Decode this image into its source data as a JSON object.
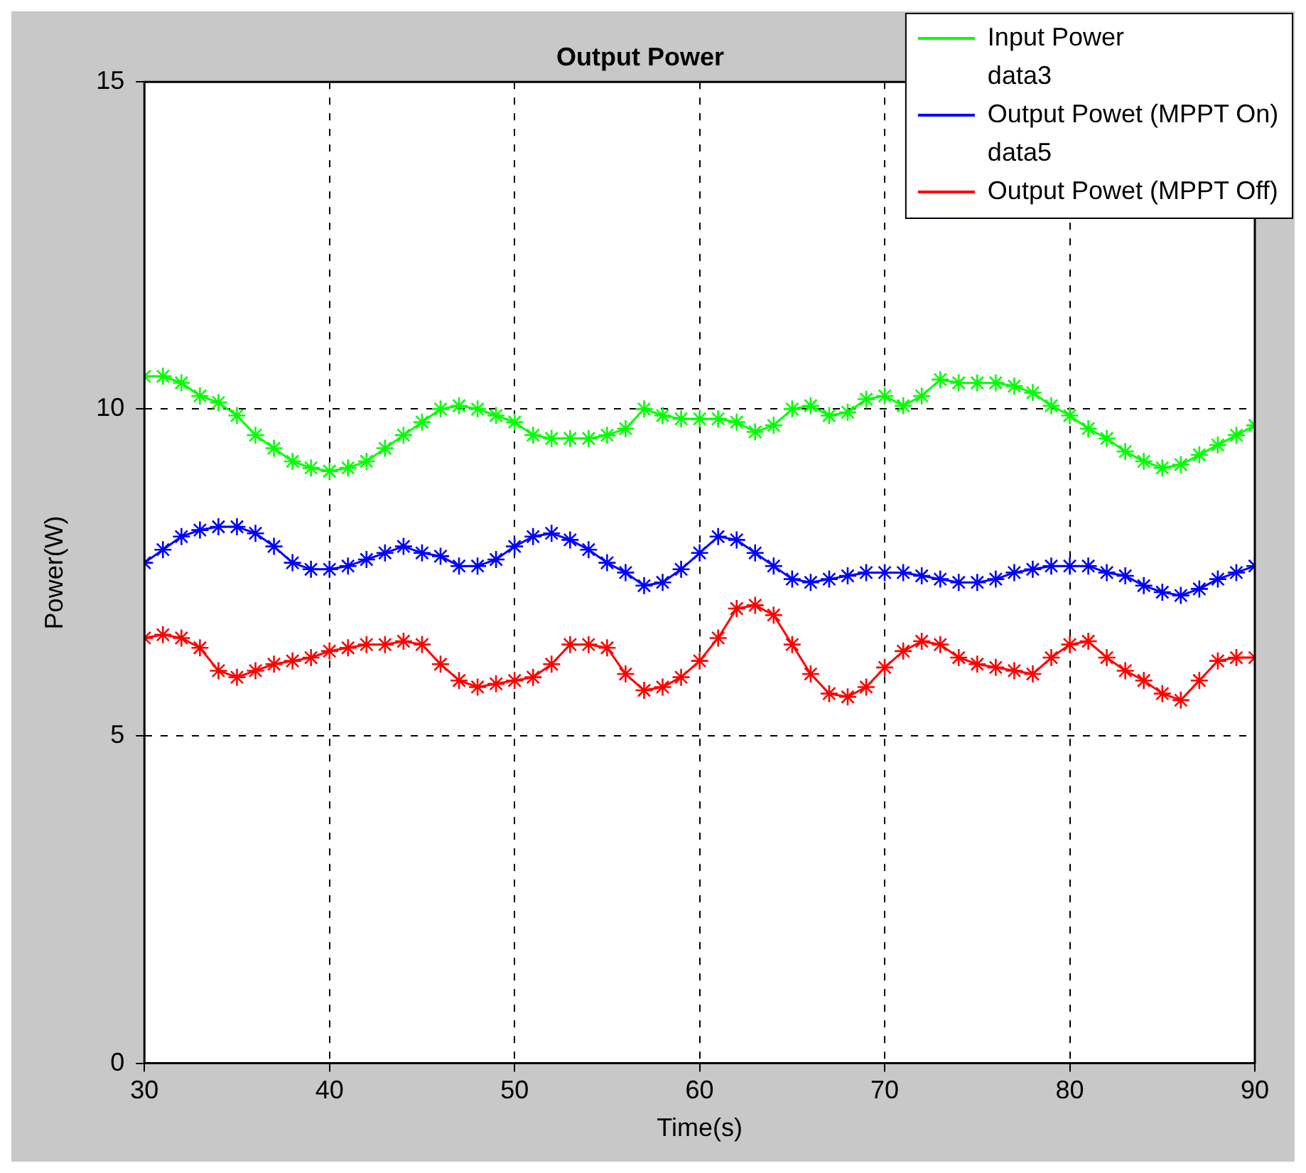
{
  "chart_data": {
    "type": "line",
    "title": "Output Power",
    "xlabel": "Time(s)",
    "ylabel": "Power(W)",
    "x": [
      30,
      31,
      32,
      33,
      34,
      35,
      36,
      37,
      38,
      39,
      40,
      41,
      42,
      43,
      44,
      45,
      46,
      47,
      48,
      49,
      50,
      51,
      52,
      53,
      54,
      55,
      56,
      57,
      58,
      59,
      60,
      61,
      62,
      63,
      64,
      65,
      66,
      67,
      68,
      69,
      70,
      71,
      72,
      73,
      74,
      75,
      76,
      77,
      78,
      79,
      80,
      81,
      82,
      83,
      84,
      85,
      86,
      87,
      88,
      89,
      90
    ],
    "series": [
      {
        "name": "Input Power",
        "color": "#00ff00",
        "values": [
          10.5,
          10.5,
          10.4,
          10.2,
          10.1,
          9.9,
          9.6,
          9.4,
          9.2,
          9.1,
          9.05,
          9.1,
          9.2,
          9.4,
          9.6,
          9.8,
          10.0,
          10.05,
          10.0,
          9.9,
          9.8,
          9.6,
          9.55,
          9.55,
          9.55,
          9.6,
          9.7,
          10.0,
          9.9,
          9.85,
          9.85,
          9.85,
          9.8,
          9.65,
          9.75,
          10.0,
          10.05,
          9.9,
          9.95,
          10.15,
          10.2,
          10.05,
          10.2,
          10.45,
          10.4,
          10.4,
          10.4,
          10.35,
          10.25,
          10.05,
          9.9,
          9.7,
          9.55,
          9.35,
          9.2,
          9.1,
          9.15,
          9.3,
          9.45,
          9.6,
          9.75
        ]
      },
      {
        "name": "data3",
        "values": [
          null,
          null,
          null,
          null,
          null,
          null,
          null,
          null,
          null,
          null,
          null,
          null,
          null,
          null,
          null,
          null,
          null,
          null,
          null,
          null,
          null,
          null,
          null,
          null,
          null,
          null,
          null,
          null,
          null,
          null,
          null,
          null,
          null,
          null,
          null,
          null,
          null,
          null,
          null,
          null,
          null,
          null,
          null,
          null,
          null,
          null,
          null,
          null,
          null,
          null,
          null,
          null,
          null,
          null,
          null,
          null,
          null,
          null,
          null,
          null,
          null
        ]
      },
      {
        "name": "Output Powet (MPPT On)",
        "color": "#0000ff",
        "values": [
          7.65,
          7.85,
          8.05,
          8.15,
          8.2,
          8.2,
          8.1,
          7.9,
          7.65,
          7.55,
          7.55,
          7.6,
          7.7,
          7.8,
          7.9,
          7.8,
          7.75,
          7.6,
          7.6,
          7.7,
          7.9,
          8.05,
          8.1,
          8.0,
          7.85,
          7.65,
          7.5,
          7.3,
          7.35,
          7.55,
          7.8,
          8.05,
          8.0,
          7.8,
          7.6,
          7.4,
          7.35,
          7.4,
          7.45,
          7.5,
          7.5,
          7.5,
          7.45,
          7.4,
          7.35,
          7.35,
          7.4,
          7.5,
          7.55,
          7.6,
          7.6,
          7.6,
          7.5,
          7.45,
          7.3,
          7.2,
          7.15,
          7.25,
          7.4,
          7.5,
          7.6
        ]
      },
      {
        "name": "data5",
        "values": [
          null,
          null,
          null,
          null,
          null,
          null,
          null,
          null,
          null,
          null,
          null,
          null,
          null,
          null,
          null,
          null,
          null,
          null,
          null,
          null,
          null,
          null,
          null,
          null,
          null,
          null,
          null,
          null,
          null,
          null,
          null,
          null,
          null,
          null,
          null,
          null,
          null,
          null,
          null,
          null,
          null,
          null,
          null,
          null,
          null,
          null,
          null,
          null,
          null,
          null,
          null,
          null,
          null,
          null,
          null,
          null,
          null,
          null,
          null,
          null,
          null
        ]
      },
      {
        "name": "Output Powet (MPPT Off)",
        "color": "#ff0000",
        "values": [
          6.5,
          6.55,
          6.5,
          6.35,
          6.0,
          5.9,
          6.0,
          6.1,
          6.15,
          6.2,
          6.3,
          6.35,
          6.4,
          6.4,
          6.45,
          6.4,
          6.1,
          5.85,
          5.75,
          5.8,
          5.85,
          5.9,
          6.1,
          6.4,
          6.4,
          6.35,
          5.95,
          5.7,
          5.75,
          5.9,
          6.15,
          6.5,
          6.95,
          7.0,
          6.85,
          6.4,
          5.95,
          5.65,
          5.6,
          5.75,
          6.05,
          6.3,
          6.45,
          6.4,
          6.2,
          6.1,
          6.05,
          6.0,
          5.95,
          6.2,
          6.4,
          6.45,
          6.2,
          6.0,
          5.85,
          5.65,
          5.55,
          5.85,
          6.15,
          6.2,
          6.2
        ]
      }
    ],
    "xlim": [
      30,
      90
    ],
    "xticks": [
      30,
      40,
      50,
      60,
      70,
      80,
      90
    ],
    "ylim": [
      0,
      15
    ],
    "yticks": [
      0,
      5,
      10,
      15
    ],
    "grid": true,
    "legend": "top right",
    "marker": "cross",
    "line_style": "solid"
  }
}
